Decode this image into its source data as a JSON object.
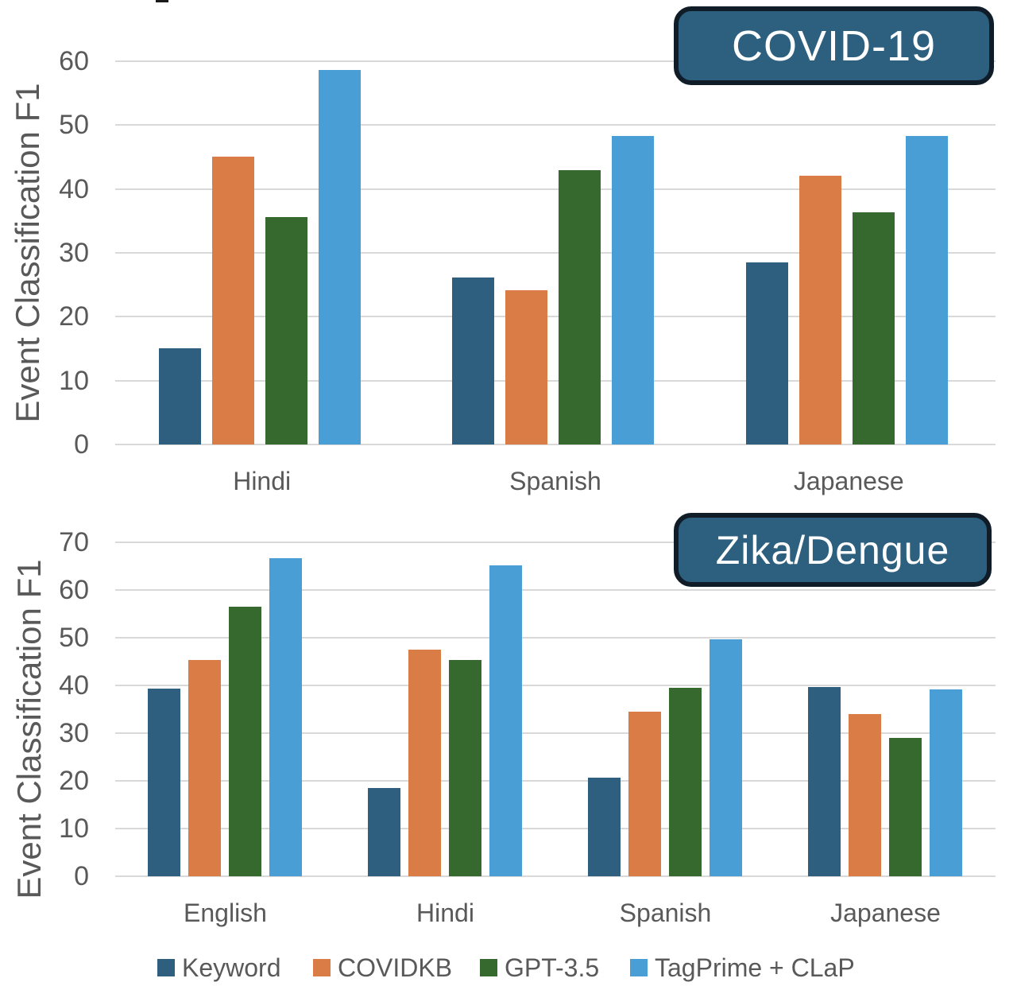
{
  "figure": {
    "y_axis_title": "Event Classification F1",
    "text_color": "#595959",
    "gridline_color": "#d9d9d9",
    "badge_fill": "#2d5f7f",
    "badge_border": "#101d29",
    "badge_text_color": "#ffffff"
  },
  "series_colors": {
    "Keyword": "#2e5f7e",
    "COVIDKB": "#d97c45",
    "GPT-3.5": "#35692e",
    "TagPrime + CLaP": "#4a9ed6"
  },
  "legend": {
    "items": [
      "Keyword",
      "COVIDKB",
      "GPT-3.5",
      "TagPrime + CLaP"
    ]
  },
  "chart_data": [
    {
      "type": "bar",
      "title": "COVID-19",
      "ylabel": "Event Classification F1",
      "xlabel": "",
      "categories": [
        "Hindi",
        "Spanish",
        "Japanese"
      ],
      "series": [
        {
          "name": "Keyword",
          "values": [
            15.1,
            26.1,
            28.5
          ]
        },
        {
          "name": "COVIDKB",
          "values": [
            45.1,
            24.2,
            42.1
          ]
        },
        {
          "name": "GPT-3.5",
          "values": [
            35.6,
            43.0,
            36.3
          ]
        },
        {
          "name": "TagPrime + CLaP",
          "values": [
            58.6,
            48.3,
            48.3
          ]
        }
      ],
      "ylim": [
        0,
        60
      ],
      "ytick_step": 10,
      "grid": true,
      "legend_position": "shared-bottom"
    },
    {
      "type": "bar",
      "title": "Zika/Dengue",
      "ylabel": "Event Classification F1",
      "xlabel": "",
      "categories": [
        "English",
        "Hindi",
        "Spanish",
        "Japanese"
      ],
      "series": [
        {
          "name": "Keyword",
          "values": [
            39.3,
            18.5,
            20.6,
            39.6
          ]
        },
        {
          "name": "COVIDKB",
          "values": [
            45.4,
            47.5,
            34.5,
            34.0
          ]
        },
        {
          "name": "GPT-3.5",
          "values": [
            56.5,
            45.4,
            39.5,
            29.0
          ]
        },
        {
          "name": "TagPrime + CLaP",
          "values": [
            66.6,
            65.1,
            49.7,
            39.1
          ]
        }
      ],
      "ylim": [
        0,
        70
      ],
      "ytick_step": 10,
      "grid": true,
      "legend_position": "shared-bottom"
    }
  ]
}
